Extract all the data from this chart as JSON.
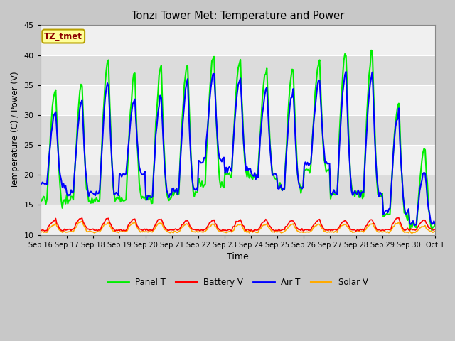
{
  "title": "Tonzi Tower Met: Temperature and Power",
  "xlabel": "Time",
  "ylabel": "Temperature (C) / Power (V)",
  "ylim": [
    10,
    45
  ],
  "y_ticks": [
    10,
    15,
    20,
    25,
    30,
    35,
    40,
    45
  ],
  "x_tick_labels": [
    "Sep 16",
    "Sep 17",
    "Sep 18",
    "Sep 19",
    "Sep 20",
    "Sep 21",
    "Sep 22",
    "Sep 23",
    "Sep 24",
    "Sep 25",
    "Sep 26",
    "Sep 27",
    "Sep 28",
    "Sep 29",
    "Sep 30",
    "Oct 1"
  ],
  "tz_label": "TZ_tmet",
  "tz_label_color": "#8b0000",
  "tz_box_color": "#ffff99",
  "tz_box_edge": "#b8a000",
  "panel_color": "#00ee00",
  "battery_color": "#ff0000",
  "air_color": "#0000ff",
  "solar_color": "#ffaa00",
  "panel_lw": 1.5,
  "battery_lw": 1.2,
  "air_lw": 1.5,
  "solar_lw": 1.2,
  "fig_bg": "#c8c8c8",
  "plot_bg": "#e8e8e8",
  "stripe_light": "#f0f0f0",
  "stripe_dark": "#dcdcdc",
  "grid_color": "white"
}
